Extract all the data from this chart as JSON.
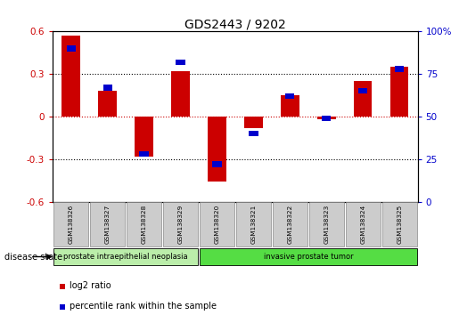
{
  "title": "GDS2443 / 9202",
  "samples": [
    "GSM138326",
    "GSM138327",
    "GSM138328",
    "GSM138329",
    "GSM138320",
    "GSM138321",
    "GSM138322",
    "GSM138323",
    "GSM138324",
    "GSM138325"
  ],
  "log2_ratio": [
    0.57,
    0.18,
    -0.28,
    0.32,
    -0.46,
    -0.08,
    0.15,
    -0.02,
    0.25,
    0.35
  ],
  "percentile_rank": [
    90,
    67,
    28,
    82,
    22,
    40,
    62,
    49,
    65,
    78
  ],
  "ylim_left": [
    -0.6,
    0.6
  ],
  "ylim_right": [
    0,
    100
  ],
  "yticks_left": [
    -0.6,
    -0.3,
    0.0,
    0.3,
    0.6
  ],
  "yticks_right": [
    0,
    25,
    50,
    75,
    100
  ],
  "ytick_labels_left": [
    "-0.6",
    "-0.3",
    "0",
    "0.3",
    "0.6"
  ],
  "ytick_labels_right": [
    "0",
    "25",
    "50",
    "75",
    "100%"
  ],
  "hlines_dotted": [
    0.3,
    -0.3
  ],
  "hline_red_dotted": 0.0,
  "bar_color_red": "#cc0000",
  "bar_color_blue": "#0000cc",
  "red_bar_width": 0.5,
  "blue_bar_width": 0.25,
  "blue_bar_height": 0.04,
  "disease_groups": [
    {
      "label": "prostate intraepithelial neoplasia",
      "indices": [
        0,
        1,
        2,
        3
      ],
      "color": "#bbeeaa"
    },
    {
      "label": "invasive prostate tumor",
      "indices": [
        4,
        5,
        6,
        7,
        8,
        9
      ],
      "color": "#55dd44"
    }
  ],
  "disease_state_label": "disease state",
  "legend_items": [
    {
      "label": "log2 ratio",
      "color": "#cc0000"
    },
    {
      "label": "percentile rank within the sample",
      "color": "#0000cc"
    }
  ],
  "background_color": "#ffffff",
  "label_area_color": "#cccccc",
  "axes_box_color": "#000000",
  "left_axis_color": "#cc0000",
  "right_axis_color": "#0000cc"
}
